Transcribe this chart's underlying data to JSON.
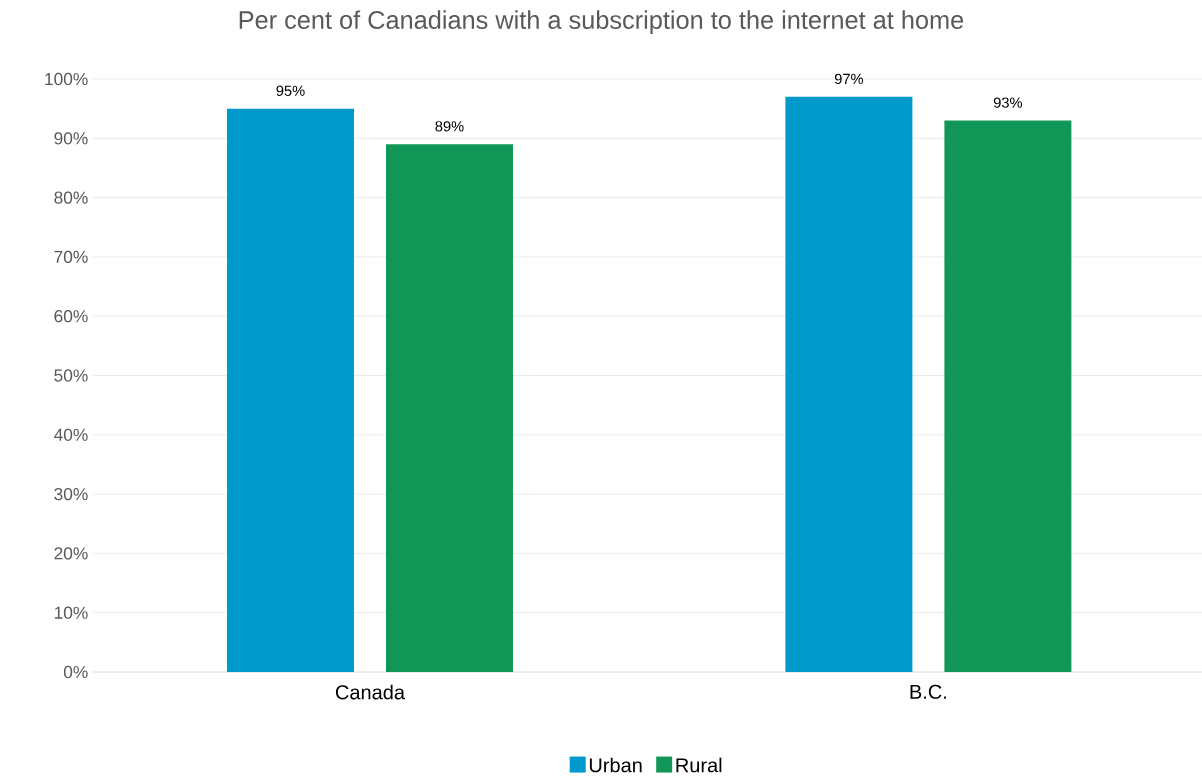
{
  "chart_data": {
    "type": "bar",
    "title": "Per cent of Canadians with a subscription to the internet at home",
    "categories": [
      "Canada",
      "B.C."
    ],
    "series": [
      {
        "name": "Urban",
        "color": "#0099cc",
        "values": [
          95,
          97
        ],
        "value_labels": [
          "95%",
          "97%"
        ]
      },
      {
        "name": "Rural",
        "color": "#129657",
        "values": [
          89,
          93
        ],
        "value_labels": [
          "89%",
          "93%"
        ]
      }
    ],
    "ylim": [
      0,
      100
    ],
    "yticks": [
      {
        "value": 0,
        "label": "0%"
      },
      {
        "value": 10,
        "label": "10%"
      },
      {
        "value": 20,
        "label": "20%"
      },
      {
        "value": 30,
        "label": "30%"
      },
      {
        "value": 40,
        "label": "40%"
      },
      {
        "value": 50,
        "label": "50%"
      },
      {
        "value": 60,
        "label": "60%"
      },
      {
        "value": 70,
        "label": "70%"
      },
      {
        "value": 80,
        "label": "80%"
      },
      {
        "value": 90,
        "label": "90%"
      },
      {
        "value": 100,
        "label": "100%"
      }
    ],
    "grid": "y",
    "legend": "bottom"
  }
}
